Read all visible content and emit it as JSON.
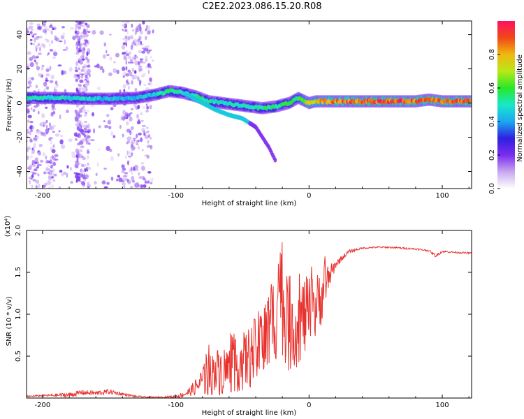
{
  "title": "C2E2.2023.086.15.20.R08",
  "chart_data": [
    {
      "type": "heatmap",
      "xlabel": "Height of straight line (km)",
      "ylabel": "Frequency (Hz)",
      "xlim": [
        -212,
        122
      ],
      "ylim": [
        -50,
        48
      ],
      "xticks": [
        -200,
        -100,
        0,
        100
      ],
      "yticks": [
        -40,
        -20,
        0,
        20,
        40
      ],
      "colorbar": {
        "label": "Normalized spectral amplitude",
        "range": [
          0.0,
          1.0
        ],
        "ticks": [
          0.0,
          0.2,
          0.4,
          0.6,
          0.8
        ],
        "tick_labels": [
          "0.0",
          "0.2",
          "0.4",
          "0.6",
          "0.8"
        ],
        "colormap": [
          "#ffffff",
          "#c8a8f0",
          "#7a2cf0",
          "#2f20e0",
          "#1aa8f0",
          "#18e8c8",
          "#28e828",
          "#b8e818",
          "#f0b810",
          "#f04818",
          "#ff1060"
        ]
      },
      "ridge": {
        "x": [
          -210,
          -190,
          -170,
          -150,
          -130,
          -115,
          -105,
          -95,
          -85,
          -75,
          -65,
          -55,
          -45,
          -35,
          -25,
          -15,
          -8,
          0,
          5,
          10,
          20,
          40,
          60,
          80,
          90,
          100,
          120
        ],
        "frequency": [
          3,
          3,
          2.5,
          2.5,
          3,
          5,
          7,
          6,
          4,
          1,
          0,
          -1,
          -2,
          -3,
          -2,
          0,
          3,
          0,
          1,
          1,
          1,
          1,
          1,
          1,
          2,
          1,
          1
        ],
        "amplitude": [
          0.55,
          0.5,
          0.5,
          0.45,
          0.45,
          0.5,
          0.6,
          0.5,
          0.55,
          0.55,
          0.5,
          0.55,
          0.5,
          0.55,
          0.55,
          0.6,
          0.6,
          0.8,
          0.8,
          0.85,
          0.9,
          0.95,
          0.95,
          0.95,
          0.95,
          0.95,
          0.95
        ]
      },
      "branch": {
        "x": [
          -92,
          -80,
          -70,
          -60,
          -50,
          -40,
          -30,
          -25
        ],
        "frequency": [
          5,
          0,
          -4,
          -7,
          -9,
          -14,
          -26,
          -34
        ]
      }
    },
    {
      "type": "line",
      "xlabel": "Height of straight line (km)",
      "ylabel": "SNR (10 * v/v)",
      "y_multiplier": "(x10⁴)",
      "xlim": [
        -212,
        122
      ],
      "ylim": [
        0,
        2.0
      ],
      "xticks": [
        -200,
        -100,
        0,
        100
      ],
      "yticks": [
        0.5,
        1.0,
        1.5,
        2.0
      ],
      "ytick_labels": [
        "0.5",
        "1.0",
        "1.5",
        "2.0"
      ],
      "series": [
        {
          "color": "#e8322e",
          "x": [
            -212,
            -200,
            -180,
            -170,
            -160,
            -150,
            -140,
            -130,
            -120,
            -110,
            -100,
            -95,
            -90,
            -85,
            -80,
            -75,
            -70,
            -65,
            -60,
            -55,
            -50,
            -45,
            -40,
            -35,
            -30,
            -25,
            -22,
            -20,
            -15,
            -10,
            -5,
            0,
            5,
            10,
            15,
            20,
            25,
            30,
            40,
            50,
            60,
            70,
            80,
            90,
            95,
            100,
            110,
            122
          ],
          "y": [
            0.02,
            0.03,
            0.04,
            0.07,
            0.06,
            0.08,
            0.05,
            0.02,
            0.01,
            0.01,
            0.02,
            0.04,
            0.08,
            0.14,
            0.22,
            0.3,
            0.34,
            0.36,
            0.38,
            0.42,
            0.46,
            0.52,
            0.6,
            0.7,
            0.85,
            1.05,
            1.6,
            1.1,
            0.95,
            0.9,
            1.0,
            1.05,
            1.1,
            1.3,
            1.45,
            1.6,
            1.68,
            1.75,
            1.79,
            1.8,
            1.8,
            1.79,
            1.78,
            1.76,
            1.7,
            1.75,
            1.74,
            1.73
          ],
          "noise": [
            0.01,
            0.01,
            0.03,
            0.03,
            0.03,
            0.03,
            0.02,
            0.01,
            0.01,
            0.01,
            0.02,
            0.03,
            0.05,
            0.1,
            0.18,
            0.25,
            0.28,
            0.3,
            0.3,
            0.32,
            0.35,
            0.38,
            0.42,
            0.5,
            0.55,
            0.6,
            0.5,
            0.55,
            0.6,
            0.5,
            0.5,
            0.45,
            0.4,
            0.35,
            0.15,
            0.05,
            0.03,
            0.02,
            0.01,
            0.01,
            0.01,
            0.01,
            0.01,
            0.01,
            0.02,
            0.01,
            0.01,
            0.01
          ]
        }
      ]
    }
  ]
}
